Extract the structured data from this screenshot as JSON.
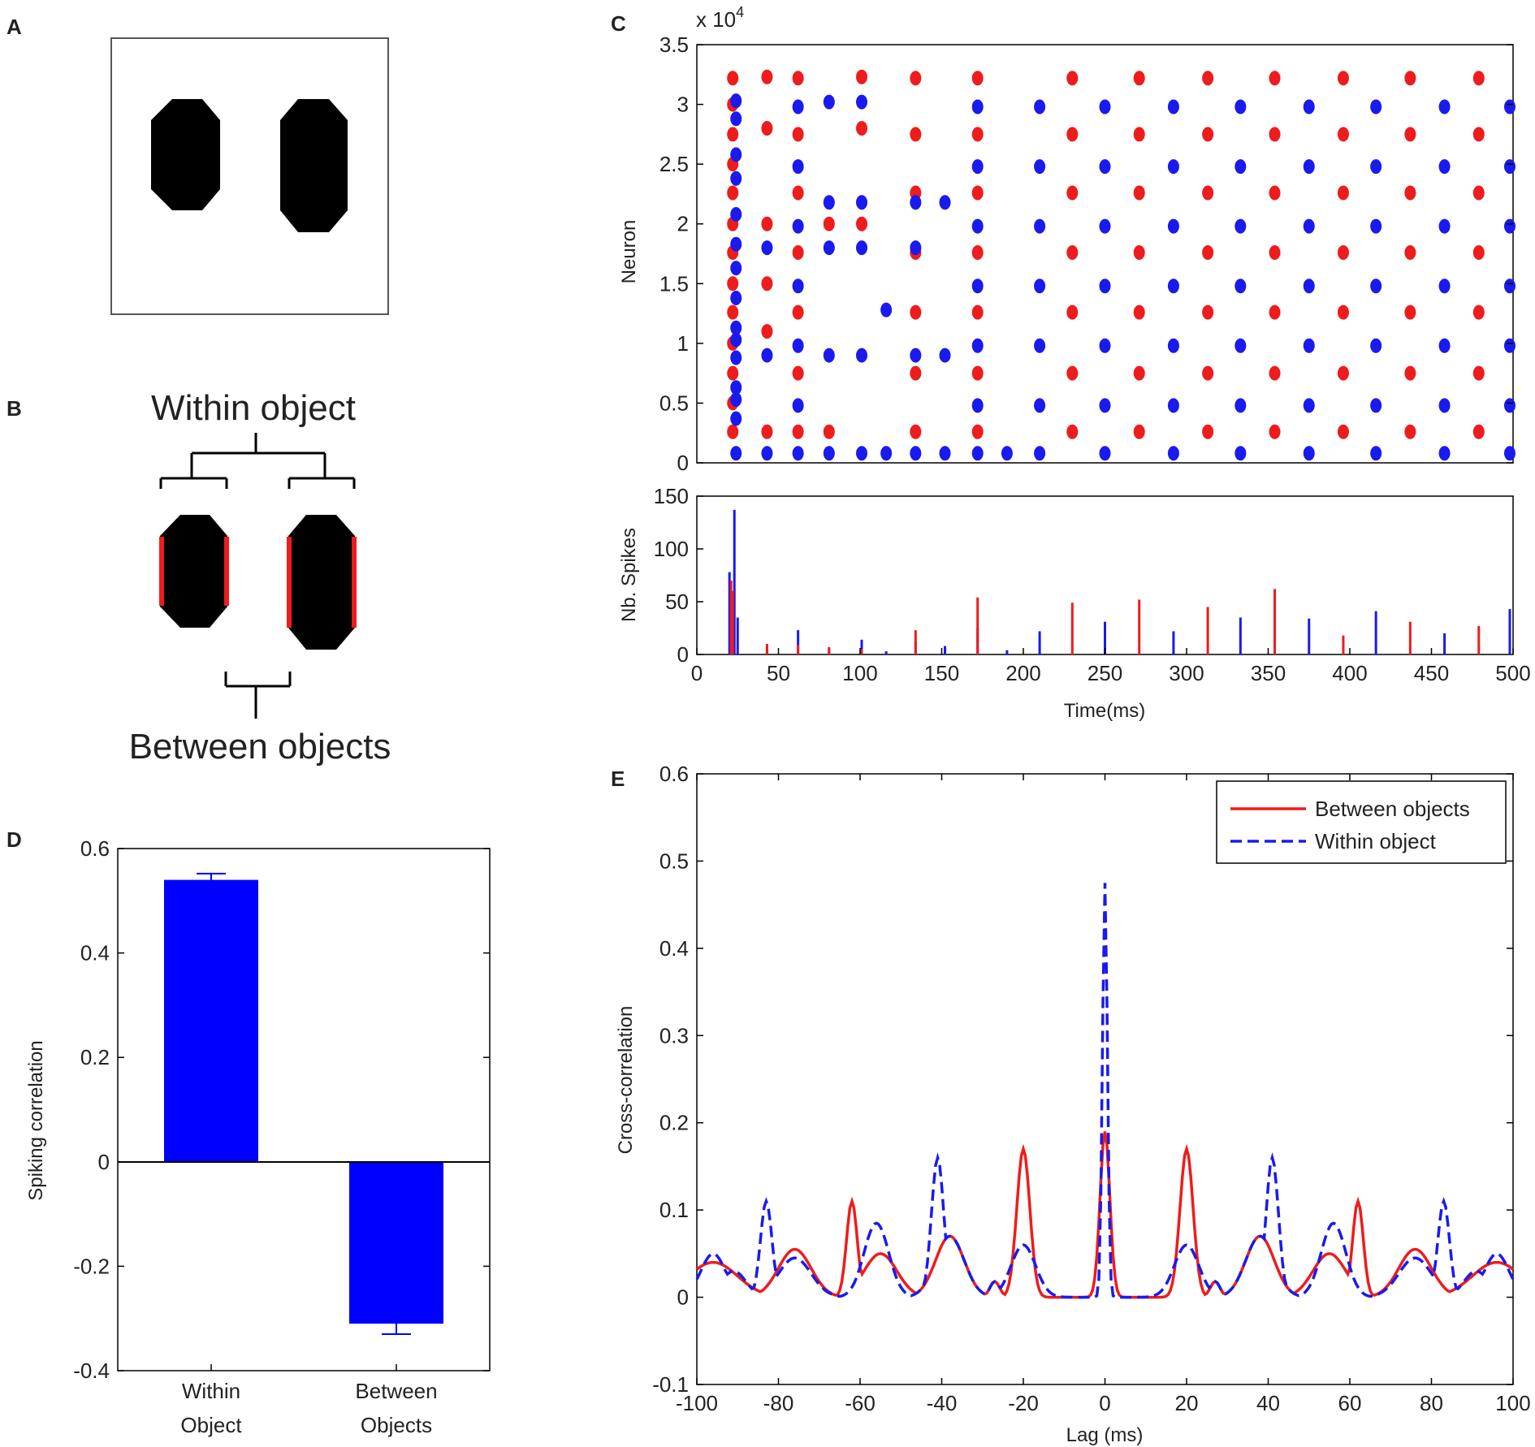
{
  "panels": {
    "A": {
      "letter": "A"
    },
    "B": {
      "letter": "B",
      "within_label": "Within object",
      "between_label": "Between objects"
    },
    "C": {
      "letter": "C"
    },
    "D": {
      "letter": "D"
    },
    "E": {
      "letter": "E"
    }
  },
  "colors": {
    "red": "#ee1c1c",
    "blue": "#1a1aee",
    "bar": "#0000ff",
    "axis": "#000000"
  },
  "chart_data": [
    {
      "id": "C-raster",
      "type": "scatter",
      "title": "",
      "xlabel": "",
      "ylabel": "Neuron",
      "exponent_label": "x 10",
      "exponent_sup": "4",
      "xlim": [
        0,
        500
      ],
      "ylim": [
        0,
        35000
      ],
      "yticks": [
        0,
        5000,
        10000,
        15000,
        20000,
        25000,
        30000,
        35000
      ],
      "ytick_labels": [
        "0",
        "0.5",
        "1",
        "1.5",
        "2",
        "2.5",
        "3",
        "3.5"
      ],
      "red_columns": [
        {
          "t": 22,
          "n": [
            2600,
            5000,
            7500,
            10000,
            12600,
            15000,
            17600,
            20000,
            22600,
            25000,
            27500,
            30000,
            32200
          ]
        },
        {
          "t": 43,
          "n": [
            2600,
            11000,
            15000,
            20000,
            28000,
            32300
          ]
        },
        {
          "t": 62,
          "n": [
            2600,
            7500,
            12600,
            17600,
            22600,
            27500,
            32200
          ]
        },
        {
          "t": 81,
          "n": [
            2600,
            20000
          ]
        },
        {
          "t": 101,
          "n": [
            20000,
            28000,
            32300
          ]
        },
        {
          "t": 134,
          "n": [
            2600,
            7500,
            12600,
            17600,
            22600,
            27500,
            32200
          ]
        },
        {
          "t": 172,
          "n": [
            2600,
            7500,
            12600,
            17600,
            22600,
            27500,
            32200
          ]
        },
        {
          "t": 230,
          "n": [
            2600,
            7500,
            12600,
            17600,
            22600,
            27500,
            32200
          ]
        },
        {
          "t": 271,
          "n": [
            2600,
            7500,
            12600,
            17600,
            22600,
            27500,
            32200
          ]
        },
        {
          "t": 313,
          "n": [
            2600,
            7500,
            12600,
            17600,
            22600,
            27500,
            32200
          ]
        },
        {
          "t": 354,
          "n": [
            2600,
            7500,
            12600,
            17600,
            22600,
            27500,
            32200
          ]
        },
        {
          "t": 396,
          "n": [
            2600,
            7500,
            12600,
            17600,
            22600,
            27500,
            32200
          ]
        },
        {
          "t": 437,
          "n": [
            2600,
            7500,
            12600,
            17600,
            22600,
            27500,
            32200
          ]
        },
        {
          "t": 479,
          "n": [
            2600,
            7500,
            12600,
            17600,
            22600,
            27500,
            32200
          ]
        }
      ],
      "blue_columns": [
        {
          "t": 24,
          "n": [
            800,
            3700,
            5300,
            6300,
            8800,
            10300,
            11300,
            13800,
            16300,
            18300,
            20800,
            23800,
            25800,
            28800,
            30300
          ]
        },
        {
          "t": 43,
          "n": [
            800,
            9000,
            18000
          ]
        },
        {
          "t": 62,
          "n": [
            800,
            4800,
            9800,
            14800,
            19800,
            24800,
            29800
          ]
        },
        {
          "t": 81,
          "n": [
            800,
            9000,
            18000,
            21800,
            30200
          ]
        },
        {
          "t": 101,
          "n": [
            800,
            9000,
            18000,
            21800,
            30200
          ]
        },
        {
          "t": 116,
          "n": [
            800,
            12800
          ]
        },
        {
          "t": 134,
          "n": [
            800,
            9000,
            18000,
            21800
          ]
        },
        {
          "t": 152,
          "n": [
            800,
            9000,
            21800
          ]
        },
        {
          "t": 172,
          "n": [
            800,
            4800,
            9800,
            14800,
            19800,
            24800,
            29800
          ]
        },
        {
          "t": 190,
          "n": [
            800
          ]
        },
        {
          "t": 210,
          "n": [
            800,
            4800,
            9800,
            14800,
            19800,
            24800,
            29800
          ]
        },
        {
          "t": 250,
          "n": [
            800,
            4800,
            9800,
            14800,
            19800,
            24800,
            29800
          ]
        },
        {
          "t": 292,
          "n": [
            800,
            4800,
            9800,
            14800,
            19800,
            24800,
            29800
          ]
        },
        {
          "t": 333,
          "n": [
            800,
            4800,
            9800,
            14800,
            19800,
            24800,
            29800
          ]
        },
        {
          "t": 375,
          "n": [
            800,
            4800,
            9800,
            14800,
            19800,
            24800,
            29800
          ]
        },
        {
          "t": 416,
          "n": [
            800,
            4800,
            9800,
            14800,
            19800,
            24800,
            29800
          ]
        },
        {
          "t": 458,
          "n": [
            800,
            4800,
            9800,
            14800,
            19800,
            24800,
            29800
          ]
        },
        {
          "t": 498,
          "n": [
            800,
            4800,
            9800,
            14800,
            19800,
            24800,
            29800
          ]
        }
      ]
    },
    {
      "id": "C-histogram",
      "type": "bar",
      "xlabel": "Time(ms)",
      "ylabel": "Nb. Spikes",
      "xlim": [
        0,
        500
      ],
      "ylim": [
        0,
        150
      ],
      "xticks": [
        0,
        50,
        100,
        150,
        200,
        250,
        300,
        350,
        400,
        450,
        500
      ],
      "yticks": [
        0,
        50,
        100,
        150
      ],
      "series": [
        {
          "name": "blue",
          "x": [
            20,
            22,
            23,
            25,
            43,
            62,
            81,
            101,
            116,
            134,
            152,
            172,
            190,
            210,
            250,
            292,
            333,
            375,
            416,
            458,
            498
          ],
          "values": [
            78,
            40,
            137,
            35,
            7,
            23,
            5,
            14,
            3,
            12,
            8,
            25,
            4,
            22,
            31,
            22,
            35,
            34,
            41,
            20,
            43
          ]
        },
        {
          "name": "red",
          "x": [
            21,
            22,
            43,
            62,
            81,
            101,
            134,
            172,
            230,
            271,
            313,
            354,
            396,
            437,
            479
          ],
          "values": [
            70,
            60,
            10,
            9,
            7,
            5,
            23,
            54,
            49,
            52,
            45,
            62,
            18,
            31,
            27
          ]
        }
      ]
    },
    {
      "id": "D",
      "type": "bar",
      "xlabel": "",
      "ylabel": "Spiking correlation",
      "ylim": [
        -0.4,
        0.6
      ],
      "yticks": [
        -0.4,
        -0.2,
        0,
        0.2,
        0.4,
        0.6
      ],
      "ytick_labels": [
        "-0.4",
        "-0.2",
        "0",
        "0.2",
        "0.4",
        "0.6"
      ],
      "categories": [
        [
          "Within",
          "Object"
        ],
        [
          "Between",
          "Objects"
        ]
      ],
      "values": [
        0.54,
        -0.31
      ],
      "errors": [
        0.012,
        0.02
      ]
    },
    {
      "id": "E",
      "type": "line",
      "xlabel": "Lag (ms)",
      "ylabel": "Cross-correlation",
      "xlim": [
        -100,
        100
      ],
      "ylim": [
        -0.1,
        0.6
      ],
      "xticks": [
        -100,
        -80,
        -60,
        -40,
        -20,
        0,
        20,
        40,
        60,
        80,
        100
      ],
      "yticks": [
        -0.1,
        0,
        0.1,
        0.2,
        0.3,
        0.4,
        0.5,
        0.6
      ],
      "ytick_labels": [
        "-0.1",
        "0",
        "0.1",
        "0.2",
        "0.3",
        "0.4",
        "0.5",
        "0.6"
      ],
      "legend": [
        "Between objects",
        "Within object"
      ],
      "legend_position": "top-right",
      "series": [
        {
          "name": "Between objects",
          "style": "solid",
          "color": "#ee1c1c",
          "baseline_peaks": [
            [
              -96,
              0.04,
              6
            ],
            [
              -76,
              0.055,
              4
            ],
            [
              -55,
              0.05,
              4
            ],
            [
              -38,
              0.07,
              3.5
            ],
            [
              -27,
              0.018,
              1.2
            ],
            [
              27,
              0.018,
              1.2
            ],
            [
              38,
              0.07,
              3.5
            ],
            [
              55,
              0.05,
              4
            ],
            [
              76,
              0.055,
              4
            ],
            [
              96,
              0.04,
              6
            ]
          ],
          "sharp_peaks": [
            [
              -62,
              0.11,
              1.3
            ],
            [
              -20,
              0.17,
              1.6
            ],
            [
              0,
              0.19,
              1.2
            ],
            [
              20,
              0.17,
              1.6
            ],
            [
              62,
              0.11,
              1.3
            ]
          ]
        },
        {
          "name": "Within object",
          "style": "dashed",
          "color": "#1a1aee",
          "baseline_peaks": [
            [
              -96,
              0.05,
              3
            ],
            [
              -91,
              0.03,
              3
            ],
            [
              -76,
              0.045,
              4
            ],
            [
              -56,
              0.085,
              3
            ],
            [
              -38,
              0.07,
              3.5
            ],
            [
              -27,
              0.018,
              1.2
            ],
            [
              -20,
              0.06,
              3
            ],
            [
              20,
              0.06,
              3
            ],
            [
              27,
              0.018,
              1.2
            ],
            [
              38,
              0.07,
              3.5
            ],
            [
              56,
              0.085,
              3
            ],
            [
              76,
              0.045,
              4
            ],
            [
              91,
              0.03,
              3
            ],
            [
              96,
              0.05,
              3
            ]
          ],
          "sharp_peaks": [
            [
              -83,
              0.11,
              1.4
            ],
            [
              -41,
              0.16,
              1.5
            ],
            [
              0,
              0.475,
              0.6
            ],
            [
              41,
              0.16,
              1.5
            ],
            [
              83,
              0.11,
              1.4
            ]
          ]
        }
      ]
    }
  ]
}
